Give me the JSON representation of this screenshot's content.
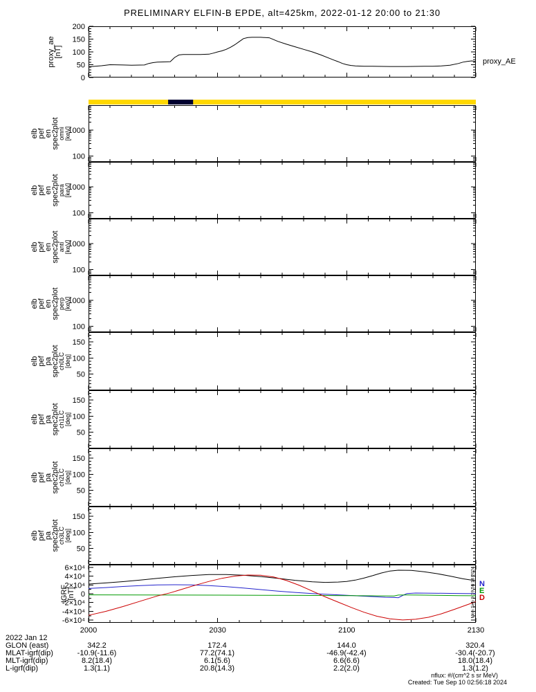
{
  "title": "PRELIMINARY ELFIN-B EPDE, alt=425km, 2022-01-12 20:00 to 21:30",
  "footer": {
    "date_label": "2022 Jan 12",
    "rows": [
      {
        "label": "GLON (east)",
        "values": [
          "342.2",
          "172.4",
          "144.0",
          "320.4"
        ]
      },
      {
        "label": "MLAT-igrf(dip)",
        "values": [
          "-10.9(-11.6)",
          "77.2(74.1)",
          "-46.9(-42.4)",
          "-30.4(-20.7)"
        ]
      },
      {
        "label": "MLT-igrf(dip)",
        "values": [
          "8.2(18.4)",
          "6.1(5.6)",
          "6.6(6.6)",
          "18.0(18.4)"
        ]
      },
      {
        "label": "L-igrf(dip)",
        "values": [
          "1.3(1.1)",
          "20.8(14.3)",
          "2.2(2.0)",
          "1.3(1.2)"
        ]
      }
    ],
    "nflux_note": "nflux: #/(cm^2 s sr MeV)",
    "created": "Created: Tue Sep 10 02:56:18 2024",
    "side_timestamp": "Mon Sep 9 19:56:18 2024"
  },
  "chart_data": {
    "type": "line",
    "title": "PRELIMINARY ELFIN-B EPDE, alt=425km, 2022-01-12 20:00 to 21:30",
    "x_axis": {
      "range_minutes": [
        0,
        90
      ],
      "minor_step": 5,
      "ticks": [
        {
          "m": 0,
          "label": "2000"
        },
        {
          "m": 30,
          "label": "2030"
        },
        {
          "m": 60,
          "label": "2100"
        },
        {
          "m": 90,
          "label": "2130"
        }
      ]
    },
    "panels": [
      {
        "panel": "proxy",
        "type": "line",
        "name": "proxy_ae",
        "ylabel_lines": [
          "proxy_ae",
          "[nT]"
        ],
        "right_label": "proxy_AE",
        "yscale": "linear",
        "ylim": [
          0,
          200
        ],
        "yminor": 10,
        "yticks": [
          {
            "v": 0,
            "label": "0"
          },
          {
            "v": 50,
            "label": "50"
          },
          {
            "v": 100,
            "label": "100"
          },
          {
            "v": 150,
            "label": "150"
          },
          {
            "v": 200,
            "label": "200"
          }
        ],
        "series": [
          {
            "name": "proxy_AE",
            "color": "#000000",
            "x": [
              0,
              3,
              5,
              8,
              10,
              13,
              14,
              15,
              16,
              18,
              19,
              20,
              21,
              22,
              24,
              26,
              28,
              29,
              30,
              31,
              32,
              33,
              34,
              35,
              36,
              37,
              38,
              40,
              41,
              42,
              43,
              44,
              46,
              48,
              50,
              52,
              54,
              56,
              57,
              58,
              59,
              60,
              61,
              62,
              64,
              66,
              70,
              74,
              78,
              80,
              82,
              84,
              86,
              87,
              88,
              89,
              90
            ],
            "y": [
              42,
              46,
              50,
              49,
              48,
              49,
              55,
              58,
              60,
              61,
              62,
              78,
              88,
              90,
              90,
              90,
              91,
              95,
              100,
              104,
              110,
              118,
              128,
              140,
              152,
              156,
              157,
              157,
              156,
              155,
              148,
              141,
              130,
              120,
              110,
              100,
              88,
              75,
              68,
              62,
              55,
              50,
              47,
              45,
              44,
              44,
              43,
              43,
              44,
              44,
              45,
              48,
              55,
              60,
              63,
              65,
              63
            ]
          }
        ]
      },
      {
        "panel": "strip",
        "type": "strip",
        "name": "data-availability-bar",
        "color": "#ffd800",
        "segments": [
          {
            "x0": 18.5,
            "x1": 24.3,
            "color": "#000030"
          }
        ]
      },
      {
        "panel": "en0",
        "type": "spec",
        "name": "elb_pef_en_spec2plot_omni",
        "ylabel_lines": [
          "elb",
          "pef",
          "en",
          "spec2plot"
        ],
        "ylabel_sub": [
          "omni",
          "[keV]"
        ],
        "yscale": "log",
        "ylim": [
          60,
          9000
        ],
        "yticks": [
          {
            "v": 1000,
            "label": "1000"
          },
          {
            "v": 100,
            "label": "100"
          }
        ]
      },
      {
        "panel": "en1",
        "type": "spec",
        "name": "elb_pef_en_spec2plot_para",
        "ylabel_lines": [
          "elb",
          "pef",
          "en",
          "spec2plot"
        ],
        "ylabel_sub": [
          "para",
          "[keV]"
        ],
        "yscale": "log",
        "ylim": [
          60,
          9000
        ],
        "yticks": [
          {
            "v": 1000,
            "label": "1000"
          },
          {
            "v": 100,
            "label": "100"
          }
        ]
      },
      {
        "panel": "en2",
        "type": "spec",
        "name": "elb_pef_en_spec2plot_anti",
        "ylabel_lines": [
          "elb",
          "pef",
          "en",
          "spec2plot"
        ],
        "ylabel_sub": [
          "anti",
          "[keV]"
        ],
        "yscale": "log",
        "ylim": [
          60,
          9000
        ],
        "yticks": [
          {
            "v": 1000,
            "label": "1000"
          },
          {
            "v": 100,
            "label": "100"
          }
        ]
      },
      {
        "panel": "en3",
        "type": "spec",
        "name": "elb_pef_en_spec2plot_perp",
        "ylabel_lines": [
          "elb",
          "pef",
          "en",
          "spec2plot"
        ],
        "ylabel_sub": [
          "perp",
          "[keV]"
        ],
        "yscale": "log",
        "ylim": [
          60,
          9000
        ],
        "yticks": [
          {
            "v": 1000,
            "label": "1000"
          },
          {
            "v": 100,
            "label": "100"
          }
        ]
      },
      {
        "panel": "pa0",
        "type": "spec",
        "name": "elb_pef_pa_spec2plot_ch0LC",
        "ylabel_lines": [
          "elb",
          "pef",
          "pa",
          "spec2plot"
        ],
        "ylabel_sub": [
          "ch0LC",
          "[deg]"
        ],
        "yscale": "linear",
        "ylim": [
          0,
          180
        ],
        "yminor": 10,
        "yticks": [
          {
            "v": 150,
            "label": "150"
          },
          {
            "v": 100,
            "label": "100"
          },
          {
            "v": 50,
            "label": "50"
          }
        ]
      },
      {
        "panel": "pa1",
        "type": "spec",
        "name": "elb_pef_pa_spec2plot_ch1LC",
        "ylabel_lines": [
          "elb",
          "pef",
          "pa",
          "spec2plot"
        ],
        "ylabel_sub": [
          "ch1LC",
          "[deg]"
        ],
        "yscale": "linear",
        "ylim": [
          0,
          180
        ],
        "yminor": 10,
        "yticks": [
          {
            "v": 150,
            "label": "150"
          },
          {
            "v": 100,
            "label": "100"
          },
          {
            "v": 50,
            "label": "50"
          }
        ]
      },
      {
        "panel": "pa2",
        "type": "spec",
        "name": "elb_pef_pa_spec2plot_ch2LC",
        "ylabel_lines": [
          "elb",
          "pef",
          "pa",
          "spec2plot"
        ],
        "ylabel_sub": [
          "ch2LC",
          "[deg]"
        ],
        "yscale": "linear",
        "ylim": [
          0,
          180
        ],
        "yminor": 10,
        "yticks": [
          {
            "v": 150,
            "label": "150"
          },
          {
            "v": 100,
            "label": "100"
          },
          {
            "v": 50,
            "label": "50"
          }
        ]
      },
      {
        "panel": "pa3",
        "type": "spec",
        "name": "elb_pef_pa_spec2plot_ch3LC",
        "ylabel_lines": [
          "elb",
          "pef",
          "pa",
          "spec2plot"
        ],
        "ylabel_sub": [
          "ch3LC",
          "[deg]"
        ],
        "yscale": "linear",
        "ylim": [
          0,
          180
        ],
        "yminor": 10,
        "yticks": [
          {
            "v": 150,
            "label": "150"
          },
          {
            "v": 100,
            "label": "100"
          },
          {
            "v": 50,
            "label": "50"
          }
        ]
      },
      {
        "panel": "igrf",
        "type": "line",
        "name": "IGRF",
        "ylabel_lines": [
          "IGRF",
          "[nT]"
        ],
        "yscale": "linear",
        "ylim": [
          -66000,
          66000
        ],
        "yminor": 10000,
        "yticks": [
          {
            "v": 60000,
            "label": "6×10⁴"
          },
          {
            "v": 40000,
            "label": "4×10⁴"
          },
          {
            "v": 20000,
            "label": "2×10⁴"
          },
          {
            "v": 0,
            "label": "0"
          },
          {
            "v": -20000,
            "label": "-2×10⁴"
          },
          {
            "v": -40000,
            "label": "-4×10⁴"
          },
          {
            "v": -60000,
            "label": "-6×10⁴"
          }
        ],
        "legend": [
          {
            "label": "N",
            "color": "#2222cc"
          },
          {
            "label": "E",
            "color": "#009900"
          },
          {
            "label": "D",
            "color": "#cc0000"
          }
        ],
        "series": [
          {
            "name": "B",
            "color": "#000000",
            "x": [
              0,
              4,
              8,
              12,
              16,
              20,
              24,
              28,
              32,
              36,
              40,
              44,
              48,
              52,
              55,
              58,
              60,
              62,
              64,
              66,
              68,
              70,
              72,
              75,
              78,
              81,
              84,
              87,
              90
            ],
            "y": [
              22000,
              24500,
              27500,
              31000,
              35000,
              38500,
              41500,
              43500,
              43500,
              42000,
              39000,
              35000,
              30500,
              27000,
              25800,
              26500,
              28000,
              31000,
              35500,
              41000,
              47000,
              51500,
              53500,
              53000,
              50000,
              45500,
              40000,
              34000,
              29500
            ]
          },
          {
            "name": "N",
            "color": "#2222cc",
            "x": [
              0,
              4,
              8,
              12,
              16,
              20,
              24,
              28,
              32,
              36,
              40,
              44,
              48,
              52,
              56,
              60,
              63,
              66,
              69,
              71,
              72,
              73,
              74,
              76,
              80,
              84,
              88,
              90
            ],
            "y": [
              12000,
              14000,
              16500,
              18500,
              20000,
              20500,
              20000,
              18500,
              16000,
              13000,
              9500,
              6000,
              3000,
              500,
              -1500,
              -3500,
              -5000,
              -6500,
              -8000,
              -8500,
              -9000,
              -4000,
              500,
              1500,
              1200,
              800,
              500,
              400
            ]
          },
          {
            "name": "E",
            "color": "#009900",
            "x": [
              0,
              10,
              20,
              30,
              40,
              50,
              60,
              68,
              71,
              72,
              74,
              78,
              82,
              86,
              90
            ],
            "y": [
              -2500,
              -2800,
              -3000,
              -3200,
              -3500,
              -3800,
              -4200,
              -4800,
              -5200,
              -3000,
              -2800,
              -3200,
              -3800,
              -4200,
              -4500
            ]
          },
          {
            "name": "D",
            "color": "#cc0000",
            "x": [
              0,
              4,
              8,
              12,
              16,
              19,
              22,
              25,
              28,
              31,
              34,
              37,
              40,
              43,
              46,
              49,
              52,
              55,
              58,
              61,
              64,
              67,
              70,
              73,
              76,
              79,
              82,
              85,
              88,
              90
            ],
            "y": [
              -49000,
              -40000,
              -29000,
              -17000,
              -5000,
              2000,
              11000,
              20000,
              28000,
              35000,
              40000,
              42500,
              42000,
              38000,
              30000,
              19000,
              6000,
              -7000,
              -19000,
              -31000,
              -42000,
              -51000,
              -57000,
              -59500,
              -58000,
              -53500,
              -45500,
              -35500,
              -25000,
              -18000
            ]
          }
        ]
      }
    ]
  }
}
